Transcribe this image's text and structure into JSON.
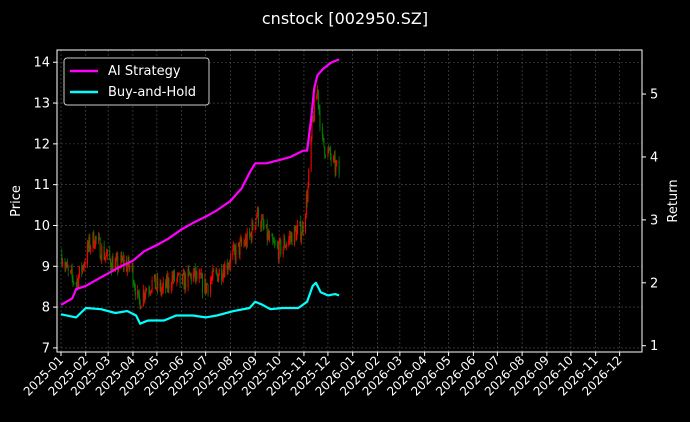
{
  "chart_data": {
    "type": "candlestick+line",
    "title": "cnstock [002950.SZ]",
    "ylabel_left": "Price",
    "ylabel_right": "Return",
    "ylim_left": [
      6.9,
      14.3
    ],
    "ylim_right": [
      0.9,
      5.7
    ],
    "yticks_left": [
      "7",
      "8",
      "9",
      "10",
      "11",
      "12",
      "13",
      "14"
    ],
    "yticks_right": [
      "1",
      "2",
      "3",
      "4",
      "5"
    ],
    "xticks": [
      "2025-01",
      "2025-02",
      "2025-03",
      "2025-04",
      "2025-05",
      "2025-06",
      "2025-07",
      "2025-08",
      "2025-09",
      "2025-10",
      "2025-11",
      "2025-12",
      "2026-01",
      "2026-02",
      "2026-03",
      "2026-04",
      "2026-05",
      "2026-06",
      "2026-07",
      "2026-08",
      "2026-09",
      "2026-10",
      "2026-11",
      "2026-12"
    ],
    "grid": true,
    "legend_position": "top-left",
    "colors": {
      "up": "#ff0000",
      "down": "#008000",
      "ai": "#ff00ff",
      "bh": "#00ffff",
      "background": "#000000"
    },
    "legend": [
      {
        "label": "AI Strategy",
        "color": "#ff00ff"
      },
      {
        "label": "Buy-and-Hold",
        "color": "#00ffff"
      }
    ],
    "price_path": [
      [
        "2025-01-02",
        9.3
      ],
      [
        "2025-01-10",
        8.8
      ],
      [
        "2025-01-20",
        8.6
      ],
      [
        "2025-01-28",
        9.0
      ],
      [
        "2025-02-05",
        9.5
      ],
      [
        "2025-02-12",
        9.7
      ],
      [
        "2025-02-20",
        9.4
      ],
      [
        "2025-02-28",
        9.2
      ],
      [
        "2025-03-10",
        9.0
      ],
      [
        "2025-03-20",
        9.1
      ],
      [
        "2025-03-31",
        8.9
      ],
      [
        "2025-04-08",
        8.1
      ],
      [
        "2025-04-15",
        8.4
      ],
      [
        "2025-04-25",
        8.6
      ],
      [
        "2025-05-08",
        8.4
      ],
      [
        "2025-05-20",
        8.7
      ],
      [
        "2025-06-02",
        8.6
      ],
      [
        "2025-06-15",
        8.8
      ],
      [
        "2025-06-30",
        8.5
      ],
      [
        "2025-07-10",
        8.7
      ],
      [
        "2025-07-25",
        9.0
      ],
      [
        "2025-08-10",
        9.4
      ],
      [
        "2025-08-25",
        9.7
      ],
      [
        "2025-09-03",
        10.3
      ],
      [
        "2025-09-12",
        9.9
      ],
      [
        "2025-09-22",
        9.5
      ],
      [
        "2025-10-01",
        9.4
      ],
      [
        "2025-10-10",
        9.6
      ],
      [
        "2025-10-20",
        9.8
      ],
      [
        "2025-10-30",
        9.9
      ],
      [
        "2025-11-06",
        10.9
      ],
      [
        "2025-11-12",
        12.6
      ],
      [
        "2025-11-18",
        13.3
      ],
      [
        "2025-11-24",
        12.0
      ],
      [
        "2025-12-01",
        11.8
      ],
      [
        "2025-12-08",
        11.5
      ],
      [
        "2025-12-15",
        11.3
      ]
    ],
    "ai_strategy": {
      "name": "AI Strategy",
      "points": [
        [
          "2025-01-01",
          1.65
        ],
        [
          "2025-01-15",
          1.75
        ],
        [
          "2025-01-20",
          1.9
        ],
        [
          "2025-02-01",
          1.95
        ],
        [
          "2025-02-15",
          2.05
        ],
        [
          "2025-03-01",
          2.15
        ],
        [
          "2025-03-15",
          2.25
        ],
        [
          "2025-04-01",
          2.35
        ],
        [
          "2025-04-15",
          2.5
        ],
        [
          "2025-05-01",
          2.6
        ],
        [
          "2025-05-15",
          2.7
        ],
        [
          "2025-06-01",
          2.85
        ],
        [
          "2025-06-15",
          2.95
        ],
        [
          "2025-07-01",
          3.05
        ],
        [
          "2025-07-15",
          3.15
        ],
        [
          "2025-08-01",
          3.3
        ],
        [
          "2025-08-15",
          3.5
        ],
        [
          "2025-08-25",
          3.75
        ],
        [
          "2025-09-01",
          3.9
        ],
        [
          "2025-09-15",
          3.9
        ],
        [
          "2025-10-01",
          3.95
        ],
        [
          "2025-10-15",
          4.0
        ],
        [
          "2025-10-31",
          4.1
        ],
        [
          "2025-11-05",
          4.1
        ],
        [
          "2025-11-10",
          4.6
        ],
        [
          "2025-11-14",
          5.1
        ],
        [
          "2025-11-18",
          5.3
        ],
        [
          "2025-11-25",
          5.4
        ],
        [
          "2025-12-05",
          5.5
        ],
        [
          "2025-12-15",
          5.55
        ]
      ]
    },
    "buy_and_hold": {
      "name": "Buy-and-Hold",
      "points": [
        [
          "2025-01-01",
          1.5
        ],
        [
          "2025-01-20",
          1.45
        ],
        [
          "2025-02-01",
          1.6
        ],
        [
          "2025-02-20",
          1.58
        ],
        [
          "2025-03-10",
          1.52
        ],
        [
          "2025-03-25",
          1.55
        ],
        [
          "2025-04-05",
          1.48
        ],
        [
          "2025-04-10",
          1.35
        ],
        [
          "2025-04-20",
          1.4
        ],
        [
          "2025-05-10",
          1.4
        ],
        [
          "2025-05-25",
          1.48
        ],
        [
          "2025-06-15",
          1.48
        ],
        [
          "2025-07-01",
          1.45
        ],
        [
          "2025-07-15",
          1.48
        ],
        [
          "2025-08-05",
          1.55
        ],
        [
          "2025-08-25",
          1.6
        ],
        [
          "2025-09-01",
          1.7
        ],
        [
          "2025-09-10",
          1.65
        ],
        [
          "2025-09-20",
          1.58
        ],
        [
          "2025-10-05",
          1.6
        ],
        [
          "2025-10-25",
          1.6
        ],
        [
          "2025-11-05",
          1.7
        ],
        [
          "2025-11-12",
          1.95
        ],
        [
          "2025-11-16",
          2.0
        ],
        [
          "2025-11-22",
          1.85
        ],
        [
          "2025-12-01",
          1.8
        ],
        [
          "2025-12-10",
          1.82
        ],
        [
          "2025-12-15",
          1.8
        ]
      ]
    }
  }
}
